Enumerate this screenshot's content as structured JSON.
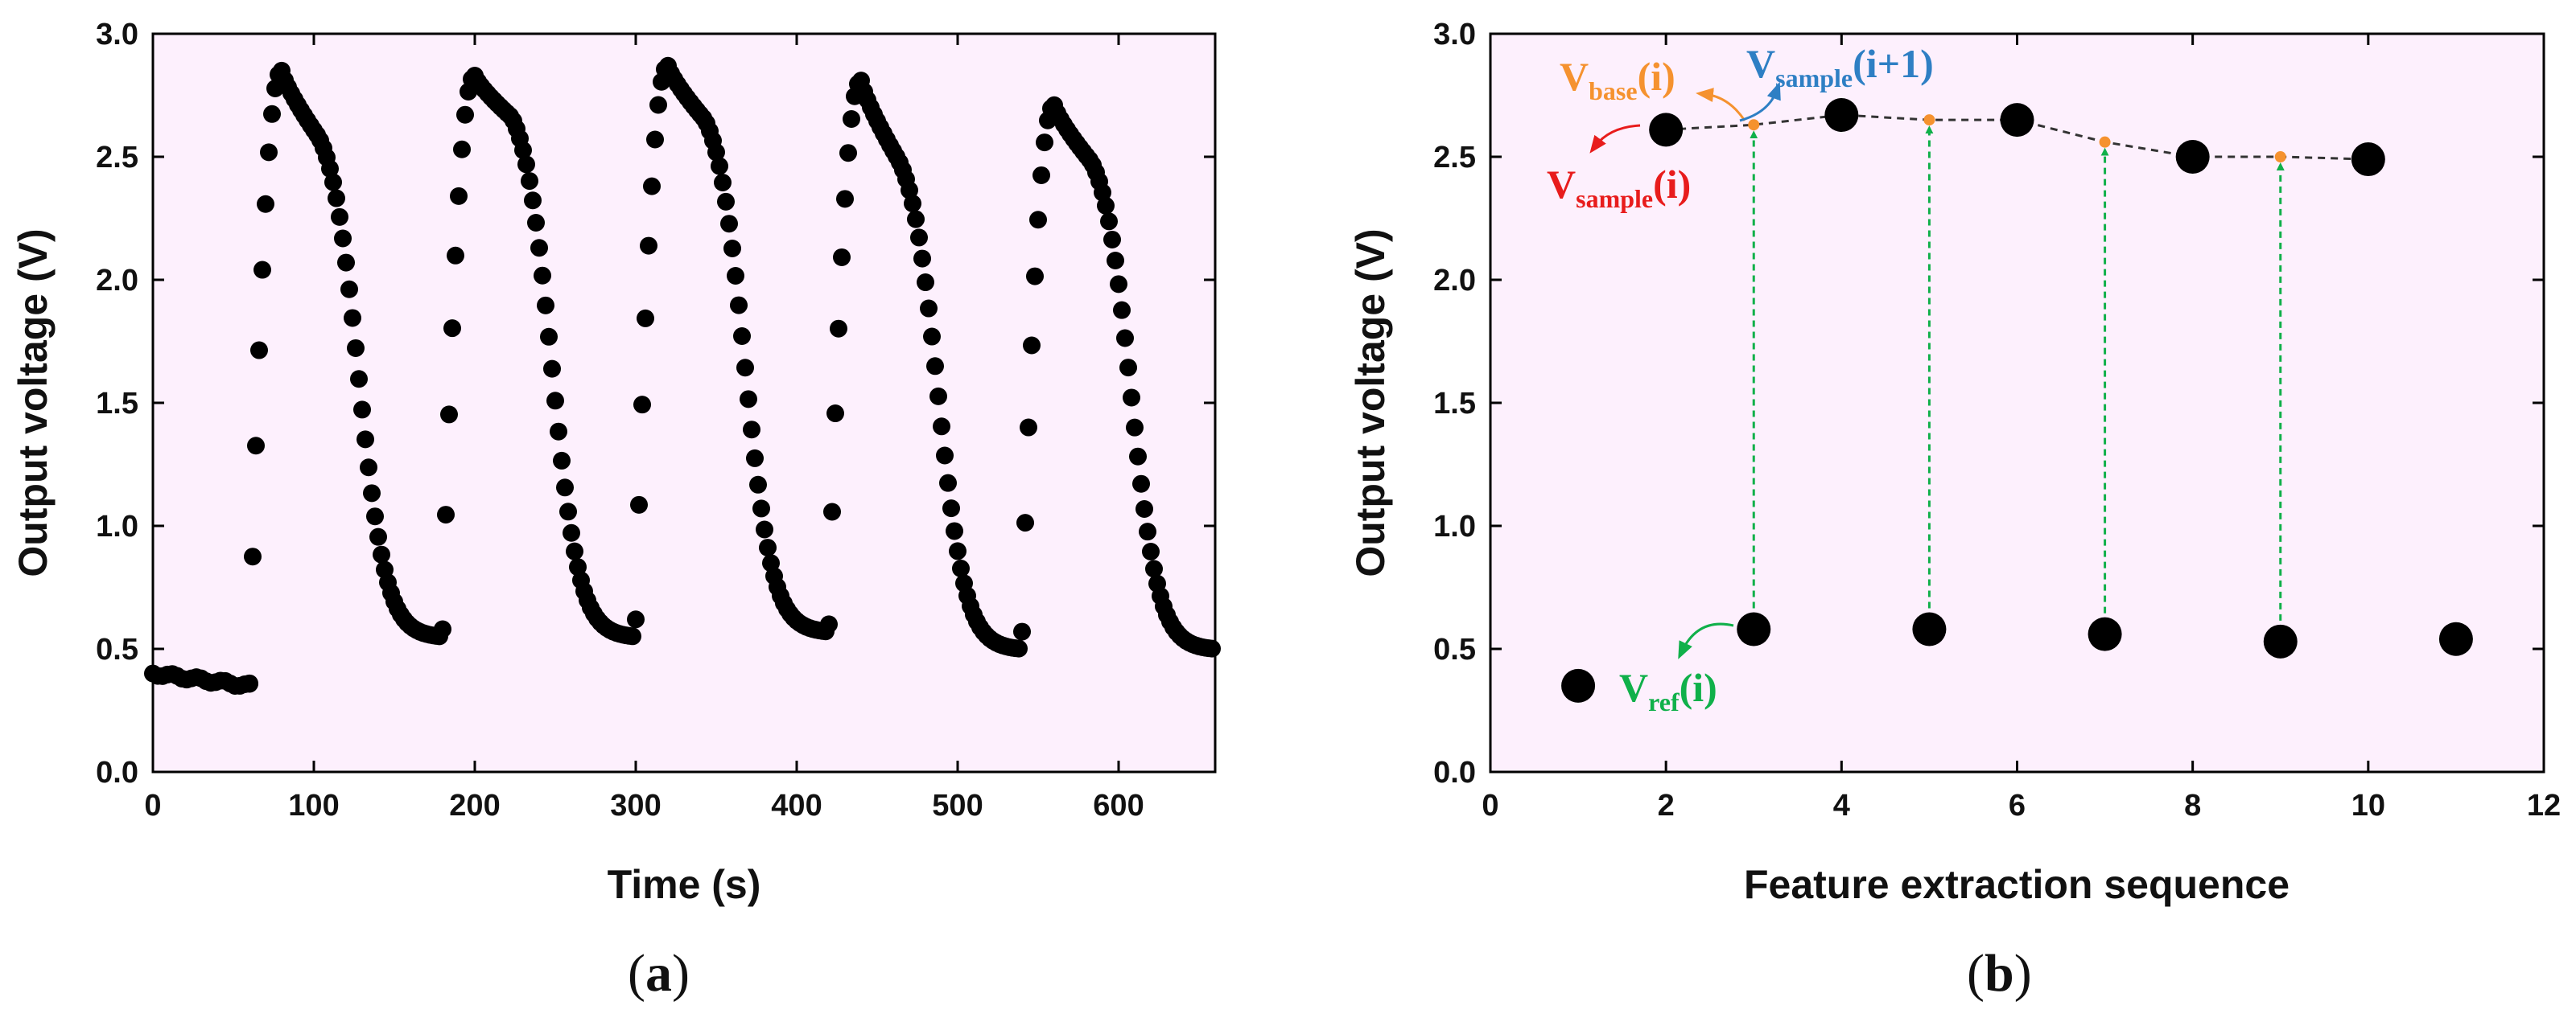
{
  "colors": {
    "plot_bg": "#FDF0FD",
    "marker": "#000000",
    "ref_arrow": "#10B04A",
    "v_base": "#F5922F",
    "v_sample_next": "#2E7FC4",
    "v_sample": "#E81C1C",
    "v_ref": "#10B04A"
  },
  "chart_data": [
    {
      "type": "scatter",
      "panel_label": "a",
      "xlabel": "Time (s)",
      "ylabel": "Output voltage (V)",
      "xlim": [
        0,
        660
      ],
      "ylim": [
        0.0,
        3.0
      ],
      "xticks": [
        "0",
        "100",
        "200",
        "300",
        "400",
        "500",
        "600"
      ],
      "yticks": [
        "0.0",
        "0.5",
        "1.0",
        "1.5",
        "2.0",
        "2.5",
        "3.0"
      ],
      "grid": false,
      "baseline": {
        "t_start": 0,
        "t_end": 60,
        "v_start": 0.4,
        "v_end": 0.35,
        "interval_s": 3
      },
      "cycles": [
        {
          "t_start": 60,
          "v_start": 0.36,
          "v_peak": 2.85,
          "v_shoulder": 2.58,
          "v_end": 0.55
        },
        {
          "t_start": 180,
          "v_start": 0.58,
          "v_peak": 2.83,
          "v_shoulder": 2.66,
          "v_end": 0.55
        },
        {
          "t_start": 300,
          "v_start": 0.62,
          "v_peak": 2.87,
          "v_shoulder": 2.65,
          "v_end": 0.57
        },
        {
          "t_start": 420,
          "v_start": 0.6,
          "v_peak": 2.81,
          "v_shoulder": 2.49,
          "v_end": 0.5
        },
        {
          "t_start": 540,
          "v_start": 0.57,
          "v_peak": 2.71,
          "v_shoulder": 2.48,
          "v_end": 0.5
        }
      ],
      "cycle_shape": {
        "rise_s": 20,
        "decay_start_s": 43,
        "interval_s": 2
      }
    },
    {
      "type": "scatter",
      "panel_label": "b",
      "xlabel": "Feature extraction sequence",
      "ylabel": "Output voltage (V)",
      "xlim": [
        0,
        12
      ],
      "ylim": [
        0.0,
        3.0
      ],
      "xticks": [
        "0",
        "2",
        "4",
        "6",
        "8",
        "10",
        "12"
      ],
      "yticks": [
        "0.0",
        "0.5",
        "1.0",
        "1.5",
        "2.0",
        "2.5",
        "3.0"
      ],
      "grid": false,
      "points": [
        {
          "x": 1,
          "y": 0.35
        },
        {
          "x": 2,
          "y": 2.61
        },
        {
          "x": 3,
          "y": 0.58
        },
        {
          "x": 4,
          "y": 2.67
        },
        {
          "x": 5,
          "y": 0.58
        },
        {
          "x": 6,
          "y": 2.65
        },
        {
          "x": 7,
          "y": 0.56
        },
        {
          "x": 8,
          "y": 2.5
        },
        {
          "x": 9,
          "y": 0.53
        },
        {
          "x": 10,
          "y": 2.49
        },
        {
          "x": 11,
          "y": 0.54
        }
      ],
      "interpolated_points": [
        {
          "x": 3,
          "y": 2.63
        },
        {
          "x": 5,
          "y": 2.65
        },
        {
          "x": 7,
          "y": 2.56
        },
        {
          "x": 9,
          "y": 2.5
        }
      ],
      "reference_arrows": [
        {
          "x": 3,
          "y_from": 0.58,
          "y_to": 2.63
        },
        {
          "x": 5,
          "y_from": 0.58,
          "y_to": 2.65
        },
        {
          "x": 7,
          "y_from": 0.56,
          "y_to": 2.56
        },
        {
          "x": 9,
          "y_from": 0.53,
          "y_to": 2.5
        }
      ],
      "annotations": {
        "v_base": {
          "main": "V",
          "sub": "base",
          "tail": "(i)"
        },
        "v_sample_next": {
          "main": "V",
          "sub": "sample",
          "tail": "(i+1)"
        },
        "v_sample": {
          "main": "V",
          "sub": "sample",
          "tail": "(i)"
        },
        "v_ref": {
          "main": "V",
          "sub": "ref",
          "tail": "(i)"
        }
      }
    }
  ]
}
